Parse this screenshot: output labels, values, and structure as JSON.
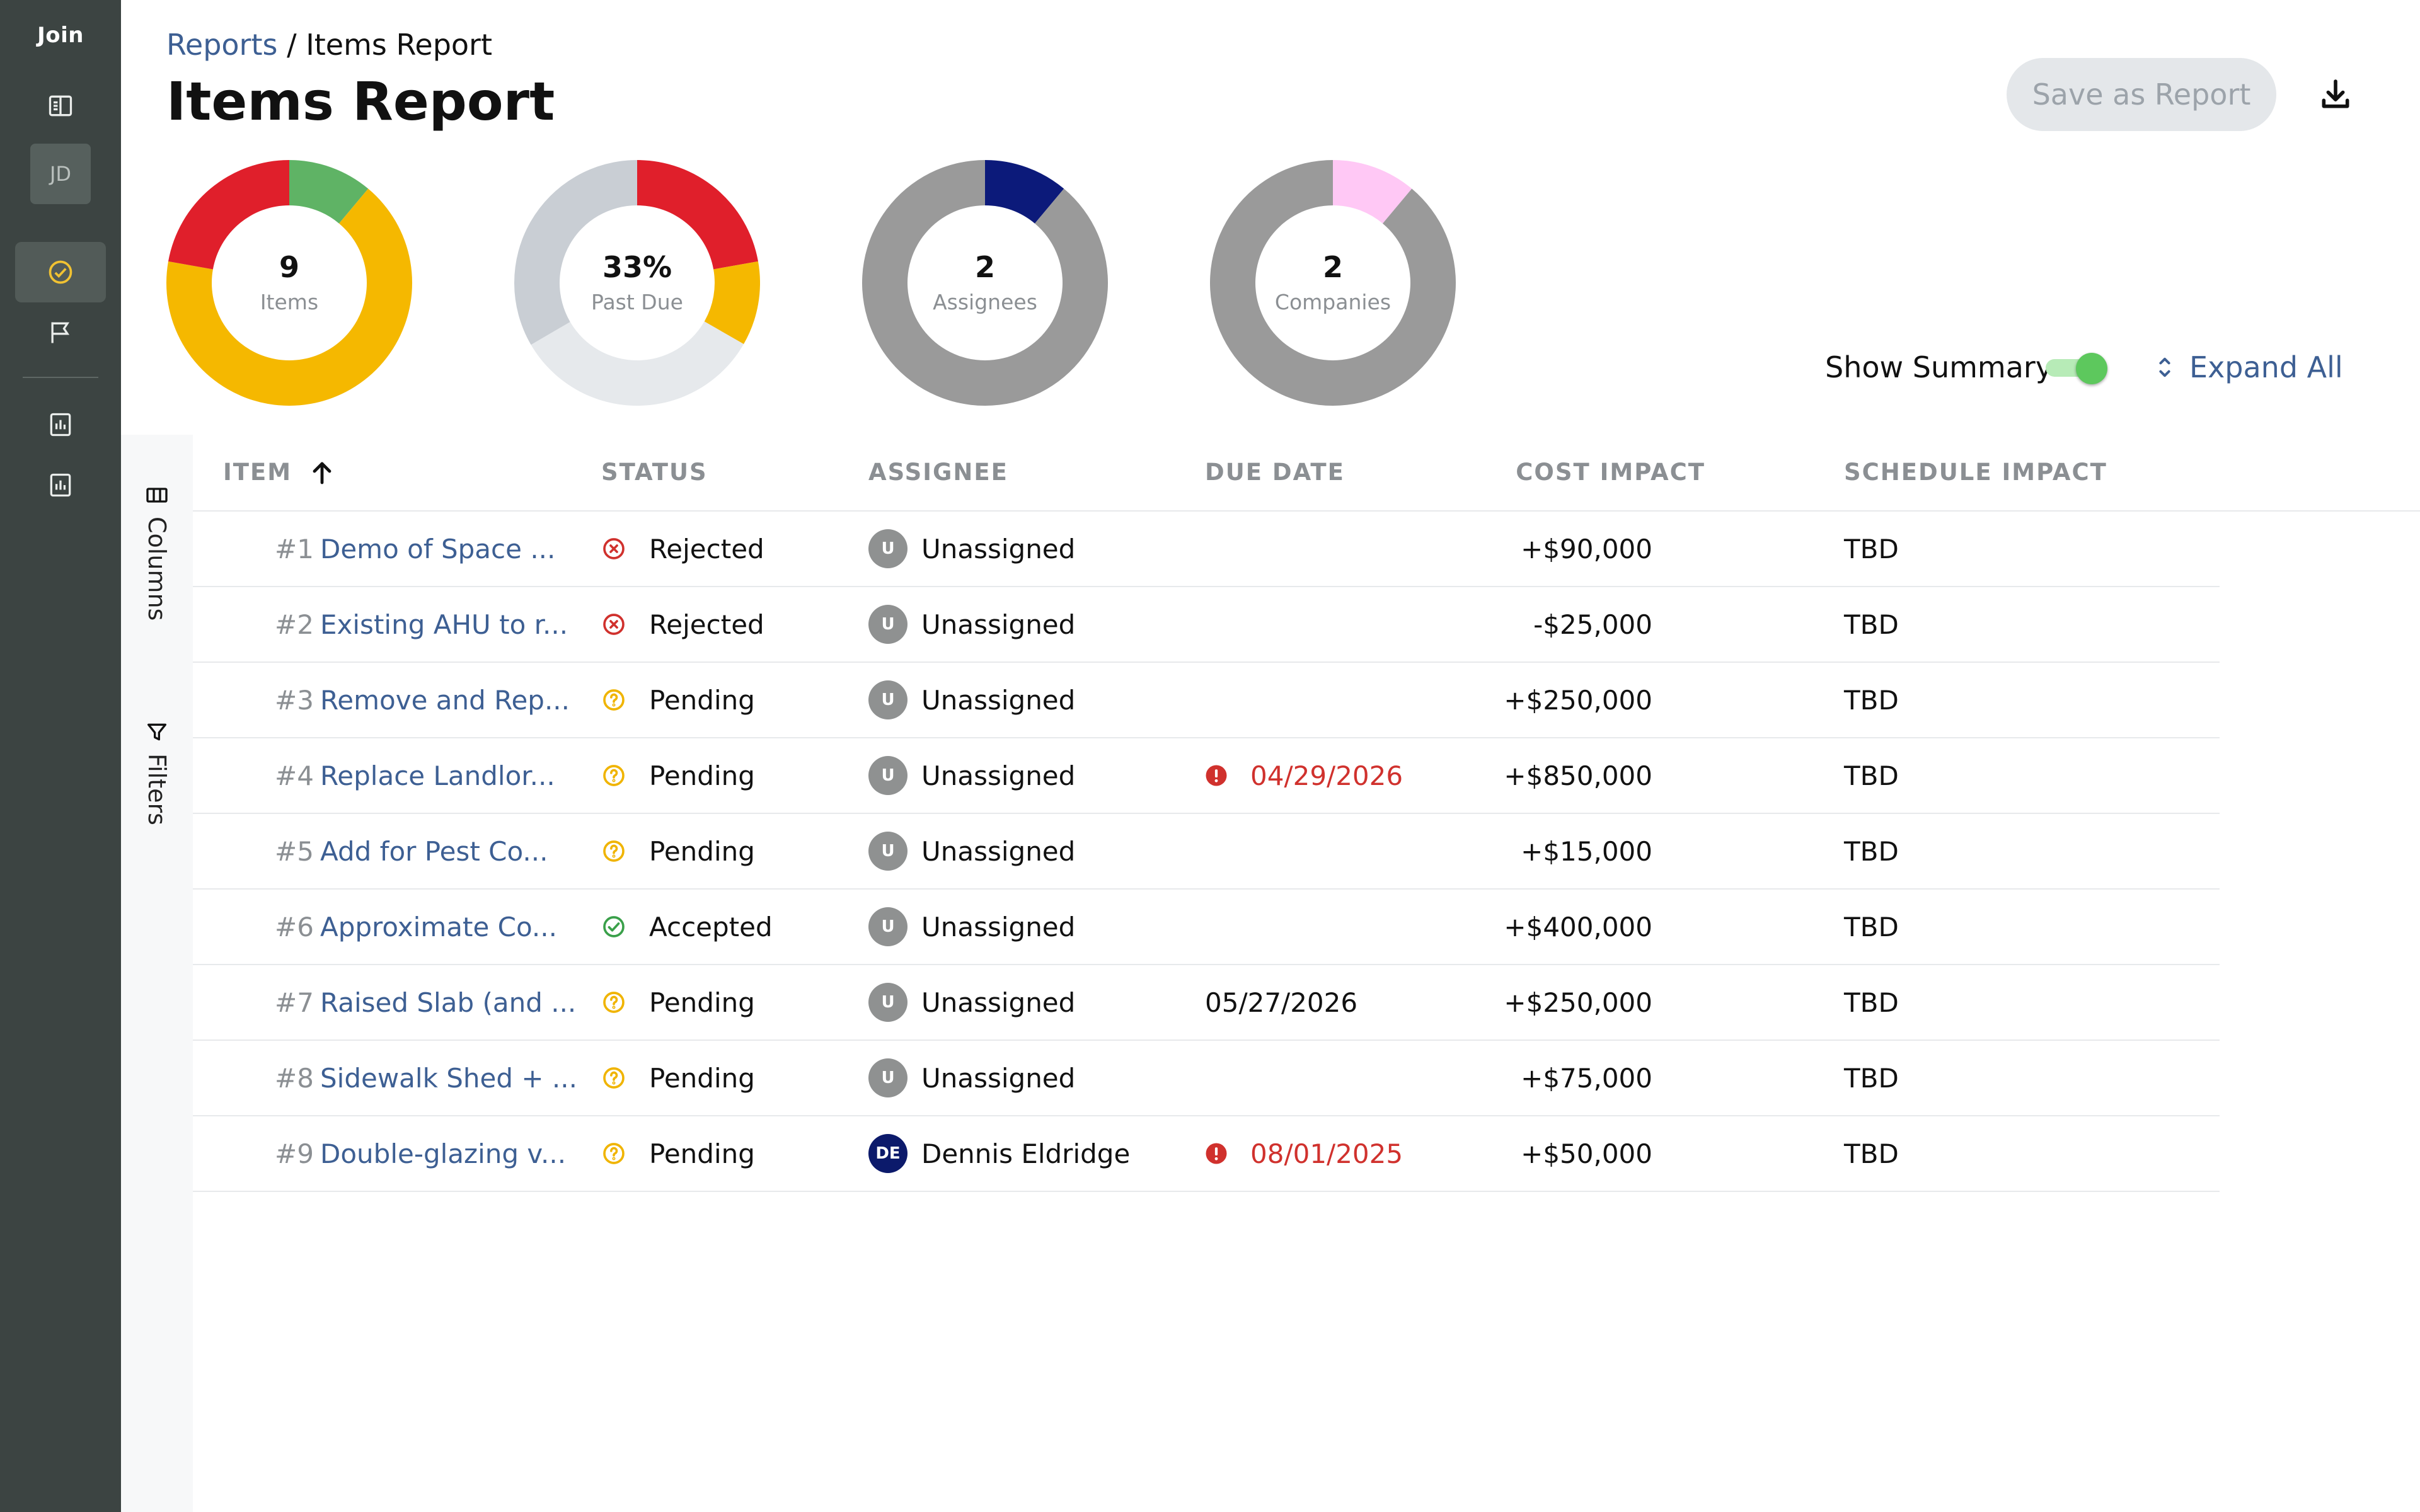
{
  "app": {
    "logo_text": "Join",
    "user_initials": "JD"
  },
  "breadcrumb": {
    "parent": "Reports",
    "separator": " / ",
    "current": "Items Report"
  },
  "page_title": "Items Report",
  "toolbar": {
    "save_label": "Save as Report"
  },
  "summary": {
    "show_summary_label": "Show Summary",
    "show_summary_on": true,
    "expand_all_label": "Expand All"
  },
  "donuts": [
    {
      "value": "9",
      "label": "Items",
      "slices": [
        {
          "fraction": 0.111,
          "color": "#5fb365"
        },
        {
          "fraction": 0.667,
          "color": "#f5b800"
        },
        {
          "fraction": 0.222,
          "color": "#e01f2b"
        }
      ]
    },
    {
      "value": "33%",
      "label": "Past Due",
      "slices": [
        {
          "fraction": 0.222,
          "color": "#e01f2b"
        },
        {
          "fraction": 0.111,
          "color": "#f5b800"
        },
        {
          "fraction": 0.333,
          "color": "#e6e9ec"
        },
        {
          "fraction": 0.334,
          "color": "#c9ced4"
        }
      ]
    },
    {
      "value": "2",
      "label": "Assignees",
      "slices": [
        {
          "fraction": 0.111,
          "color": "#0c1a7a"
        },
        {
          "fraction": 0.889,
          "color": "#9a9a9a"
        }
      ]
    },
    {
      "value": "2",
      "label": "Companies",
      "slices": [
        {
          "fraction": 0.111,
          "color": "#ffc8f5"
        },
        {
          "fraction": 0.889,
          "color": "#9a9a9a"
        }
      ]
    }
  ],
  "side_tools": {
    "columns_label": "Columns",
    "filters_label": "Filters"
  },
  "table": {
    "headers": {
      "item": "ITEM",
      "status": "STATUS",
      "assignee": "ASSIGNEE",
      "due_date": "DUE DATE",
      "cost_impact": "COST IMPACT",
      "schedule_impact": "SCHEDULE IMPACT"
    },
    "rows": [
      {
        "num": "#1",
        "name": "Demo of Space ...",
        "status": "Rejected",
        "assignee_initials": "U",
        "assignee": "Unassigned",
        "due": "",
        "overdue": false,
        "cost": "+$90,000",
        "schedule": "TBD"
      },
      {
        "num": "#2",
        "name": "Existing AHU to r...",
        "status": "Rejected",
        "assignee_initials": "U",
        "assignee": "Unassigned",
        "due": "",
        "overdue": false,
        "cost": "-$25,000",
        "schedule": "TBD"
      },
      {
        "num": "#3",
        "name": "Remove and Rep...",
        "status": "Pending",
        "assignee_initials": "U",
        "assignee": "Unassigned",
        "due": "",
        "overdue": false,
        "cost": "+$250,000",
        "schedule": "TBD"
      },
      {
        "num": "#4",
        "name": "Replace Landlor...",
        "status": "Pending",
        "assignee_initials": "U",
        "assignee": "Unassigned",
        "due": "04/29/2026",
        "overdue": true,
        "cost": "+$850,000",
        "schedule": "TBD"
      },
      {
        "num": "#5",
        "name": "Add for Pest Co...",
        "status": "Pending",
        "assignee_initials": "U",
        "assignee": "Unassigned",
        "due": "",
        "overdue": false,
        "cost": "+$15,000",
        "schedule": "TBD"
      },
      {
        "num": "#6",
        "name": "Approximate Co...",
        "status": "Accepted",
        "assignee_initials": "U",
        "assignee": "Unassigned",
        "due": "",
        "overdue": false,
        "cost": "+$400,000",
        "schedule": "TBD"
      },
      {
        "num": "#7",
        "name": "Raised Slab (and ...",
        "status": "Pending",
        "assignee_initials": "U",
        "assignee": "Unassigned",
        "due": "05/27/2026",
        "overdue": false,
        "cost": "+$250,000",
        "schedule": "TBD"
      },
      {
        "num": "#8",
        "name": "Sidewalk Shed + ...",
        "status": "Pending",
        "assignee_initials": "U",
        "assignee": "Unassigned",
        "due": "",
        "overdue": false,
        "cost": "+$75,000",
        "schedule": "TBD"
      },
      {
        "num": "#9",
        "name": "Double-glazing v...",
        "status": "Pending",
        "assignee_initials": "DE",
        "assignee": "Dennis Eldridge",
        "due": "08/01/2025",
        "overdue": true,
        "cost": "+$50,000",
        "schedule": "TBD"
      }
    ]
  },
  "colors": {
    "rail_bg": "#3c4442",
    "link": "#3d5f93",
    "overdue": "#d0312d",
    "rejected": "#d0312d",
    "pending": "#f0b400",
    "accepted": "#3aa04a",
    "toggle_on": "#5dc85d"
  },
  "icons": {
    "rail": [
      "layout-icon",
      "check-circle-icon",
      "flag-icon",
      "report-icon",
      "report-icon"
    ],
    "status": {
      "Rejected": "x-circle-icon",
      "Pending": "question-circle-icon",
      "Accepted": "check-circle-icon"
    },
    "download": "download-icon",
    "expand": "expand-chevrons-icon",
    "sort": "arrow-up-icon",
    "overdue": "alert-circle-icon"
  }
}
